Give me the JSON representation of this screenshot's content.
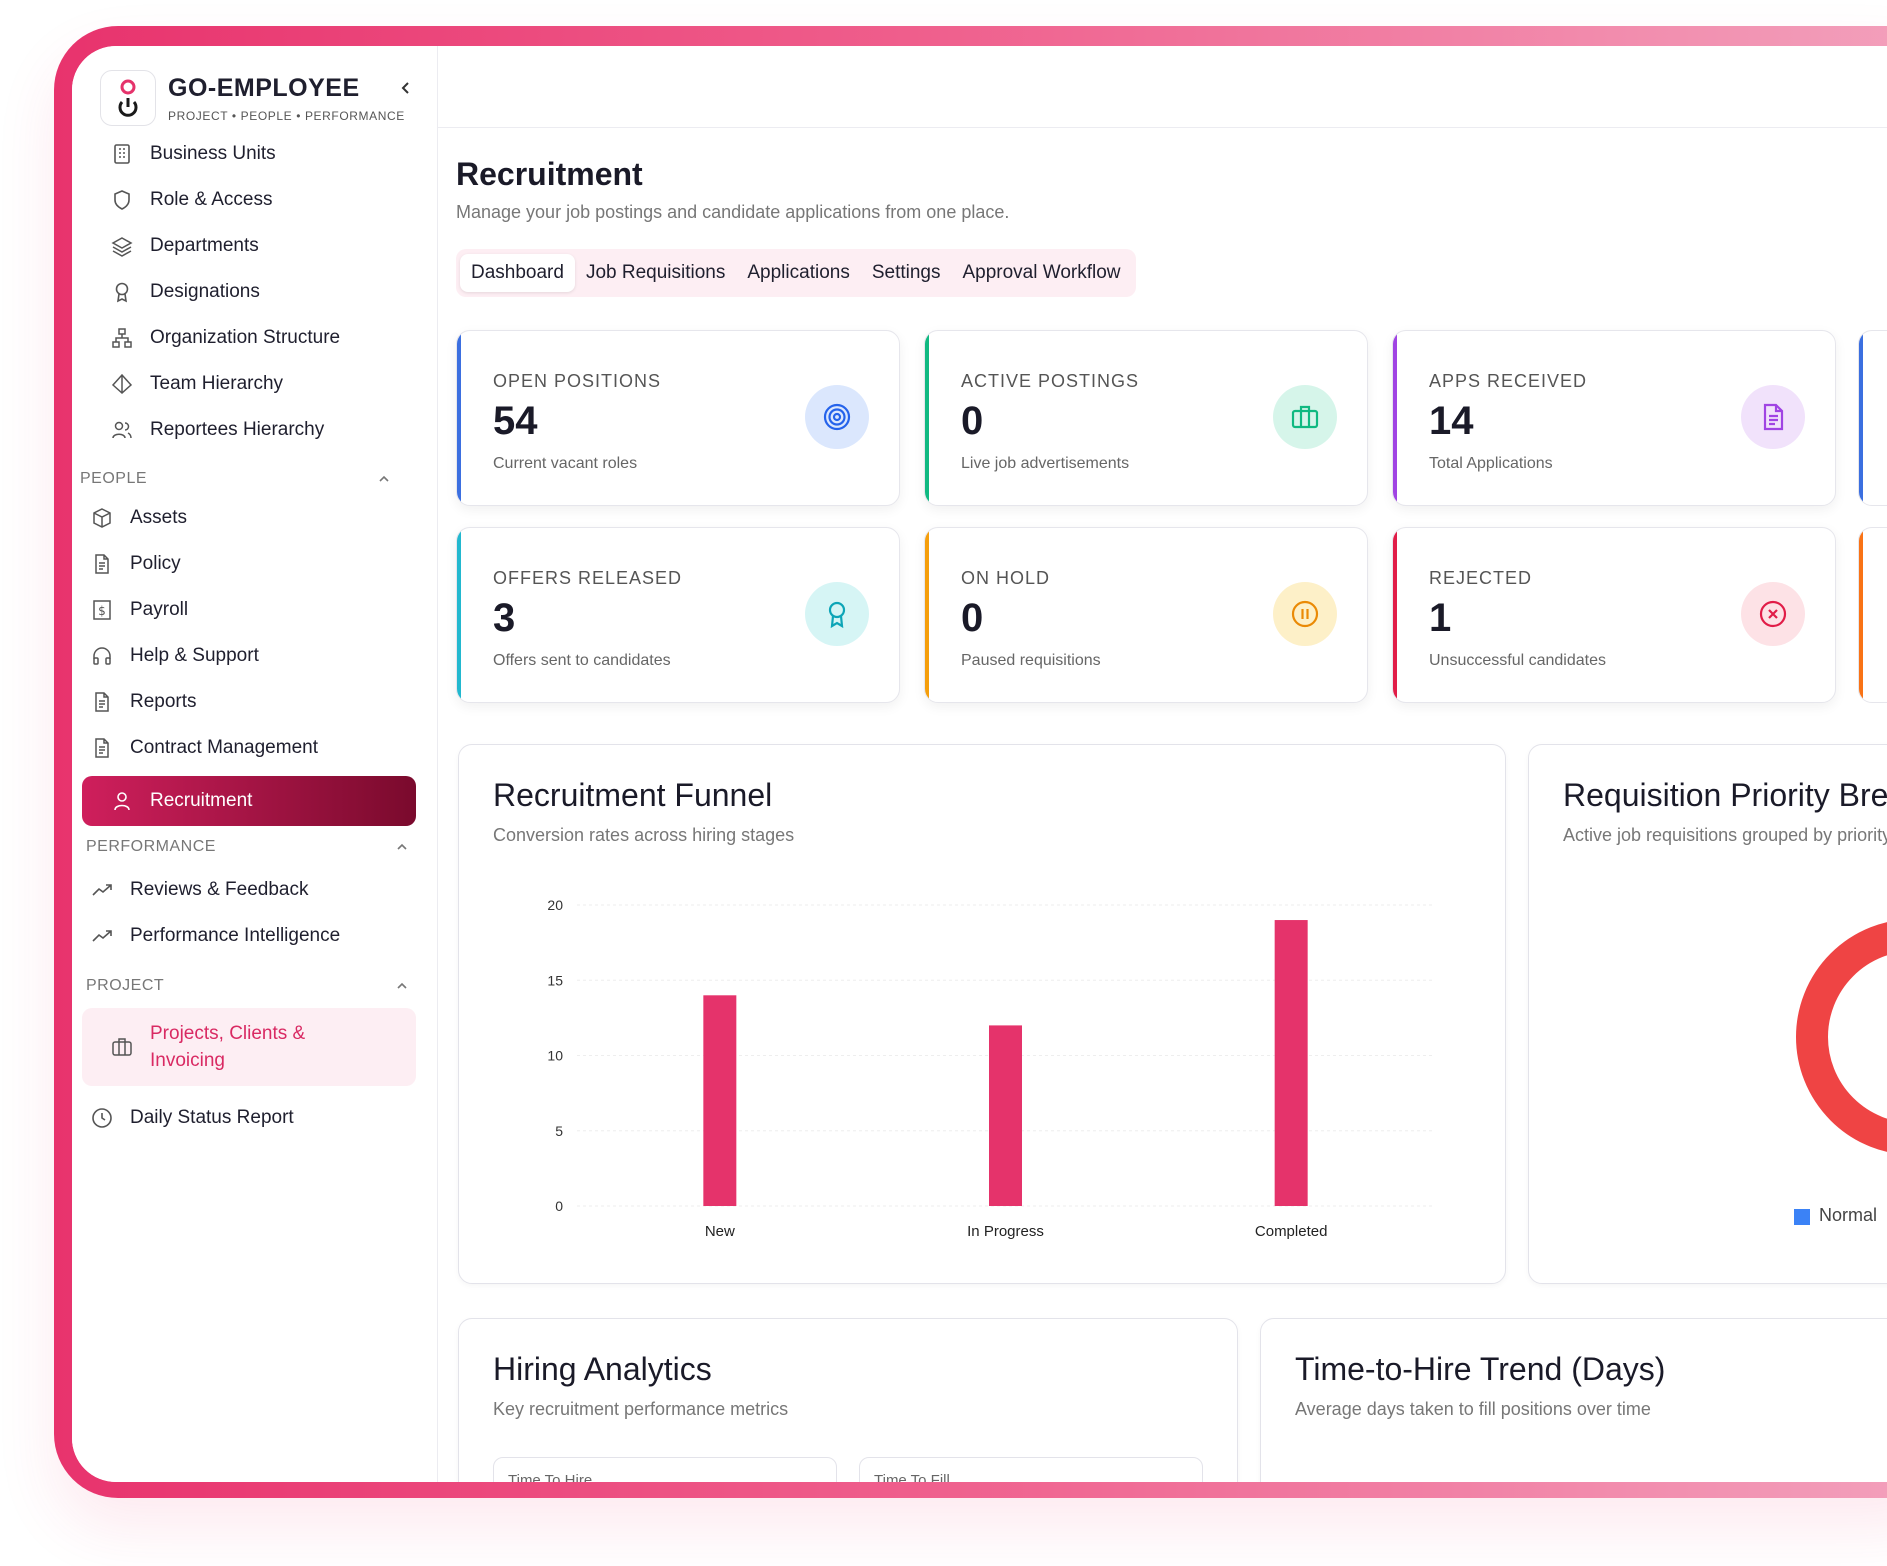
{
  "brand": {
    "name": "GO-EMPLOYEE",
    "tagline": "PROJECT • PEOPLE • PERFORMANCE"
  },
  "sidebar": {
    "items": [
      {
        "label": "Business Units",
        "icon": "building-icon"
      },
      {
        "label": "Role & Access",
        "icon": "shield-icon"
      },
      {
        "label": "Departments",
        "icon": "layers-icon"
      },
      {
        "label": "Designations",
        "icon": "award-icon"
      },
      {
        "label": "Organization Structure",
        "icon": "network-icon"
      },
      {
        "label": "Team Hierarchy",
        "icon": "pyramid-icon"
      },
      {
        "label": "Reportees Hierarchy",
        "icon": "users-icon"
      }
    ],
    "people_section": "PEOPLE",
    "people_items": [
      {
        "label": "Assets",
        "icon": "box-icon"
      },
      {
        "label": "Policy",
        "icon": "document-icon"
      },
      {
        "label": "Payroll",
        "icon": "dollar-icon"
      },
      {
        "label": "Help & Support",
        "icon": "headphones-icon"
      },
      {
        "label": "Reports",
        "icon": "document-icon"
      },
      {
        "label": "Contract Management",
        "icon": "document-icon"
      },
      {
        "label": "Recruitment",
        "icon": "user-icon"
      }
    ],
    "performance_section": "PERFORMANCE",
    "performance_items": [
      {
        "label": "Reviews & Feedback",
        "icon": "trend-icon"
      },
      {
        "label": "Performance Intelligence",
        "icon": "trend-icon"
      }
    ],
    "project_section": "PROJECT",
    "project_items": [
      {
        "label": "Projects, Clients &",
        "label2": "Invoicing",
        "icon": "briefcase-icon"
      },
      {
        "label": "Daily Status Report",
        "icon": "clock-icon"
      }
    ]
  },
  "header": {
    "title": "Recruitment",
    "subtitle": "Manage your job postings and candidate applications from one place."
  },
  "tabs": [
    "Dashboard",
    "Job Requisitions",
    "Applications",
    "Settings",
    "Approval Workflow"
  ],
  "active_tab": "Dashboard",
  "stats": [
    {
      "label": "OPEN POSITIONS",
      "value": "54",
      "desc": "Current vacant roles",
      "color": "#3b6fe0",
      "icon": "target-icon"
    },
    {
      "label": "ACTIVE POSTINGS",
      "value": "0",
      "desc": "Live job advertisements",
      "color": "#10b981",
      "icon": "briefcase-icon"
    },
    {
      "label": "APPS RECEIVED",
      "value": "14",
      "desc": "Total Applications",
      "color": "#a044e3",
      "icon": "file-icon"
    },
    {
      "label": "OFFERS RELEASED",
      "value": "3",
      "desc": "Offers sent to candidates",
      "color": "#22b8cf",
      "icon": "award-icon"
    },
    {
      "label": "ON HOLD",
      "value": "0",
      "desc": "Paused requisitions",
      "color": "#f59e0b",
      "icon": "pause-icon"
    },
    {
      "label": "REJECTED",
      "value": "1",
      "desc": "Unsuccessful candidates",
      "color": "#e11d48",
      "icon": "x-circle-icon"
    }
  ],
  "funnel": {
    "title": "Recruitment Funnel",
    "subtitle": "Conversion rates across hiring stages"
  },
  "priority": {
    "title": "Requisition Priority Breakdown",
    "subtitle": "Active job requisitions grouped by priority",
    "legend": "Normal",
    "legend_color": "#3b82f6",
    "ring_color": "#ef4444"
  },
  "analytics": {
    "title": "Hiring Analytics",
    "subtitle": "Key recruitment performance metrics",
    "metrics": [
      "Time To Hire",
      "Time To Fill"
    ]
  },
  "trend": {
    "title": "Time-to-Hire Trend (Days)",
    "subtitle": "Average days taken to fill positions over time"
  },
  "chart_data": {
    "type": "bar",
    "categories": [
      "New",
      "In Progress",
      "Completed"
    ],
    "values": [
      14,
      12,
      19
    ],
    "ylim": [
      0,
      20
    ],
    "yticks": [
      0,
      5,
      10,
      15,
      20
    ],
    "bar_color": "#e5336b",
    "grid": true
  }
}
